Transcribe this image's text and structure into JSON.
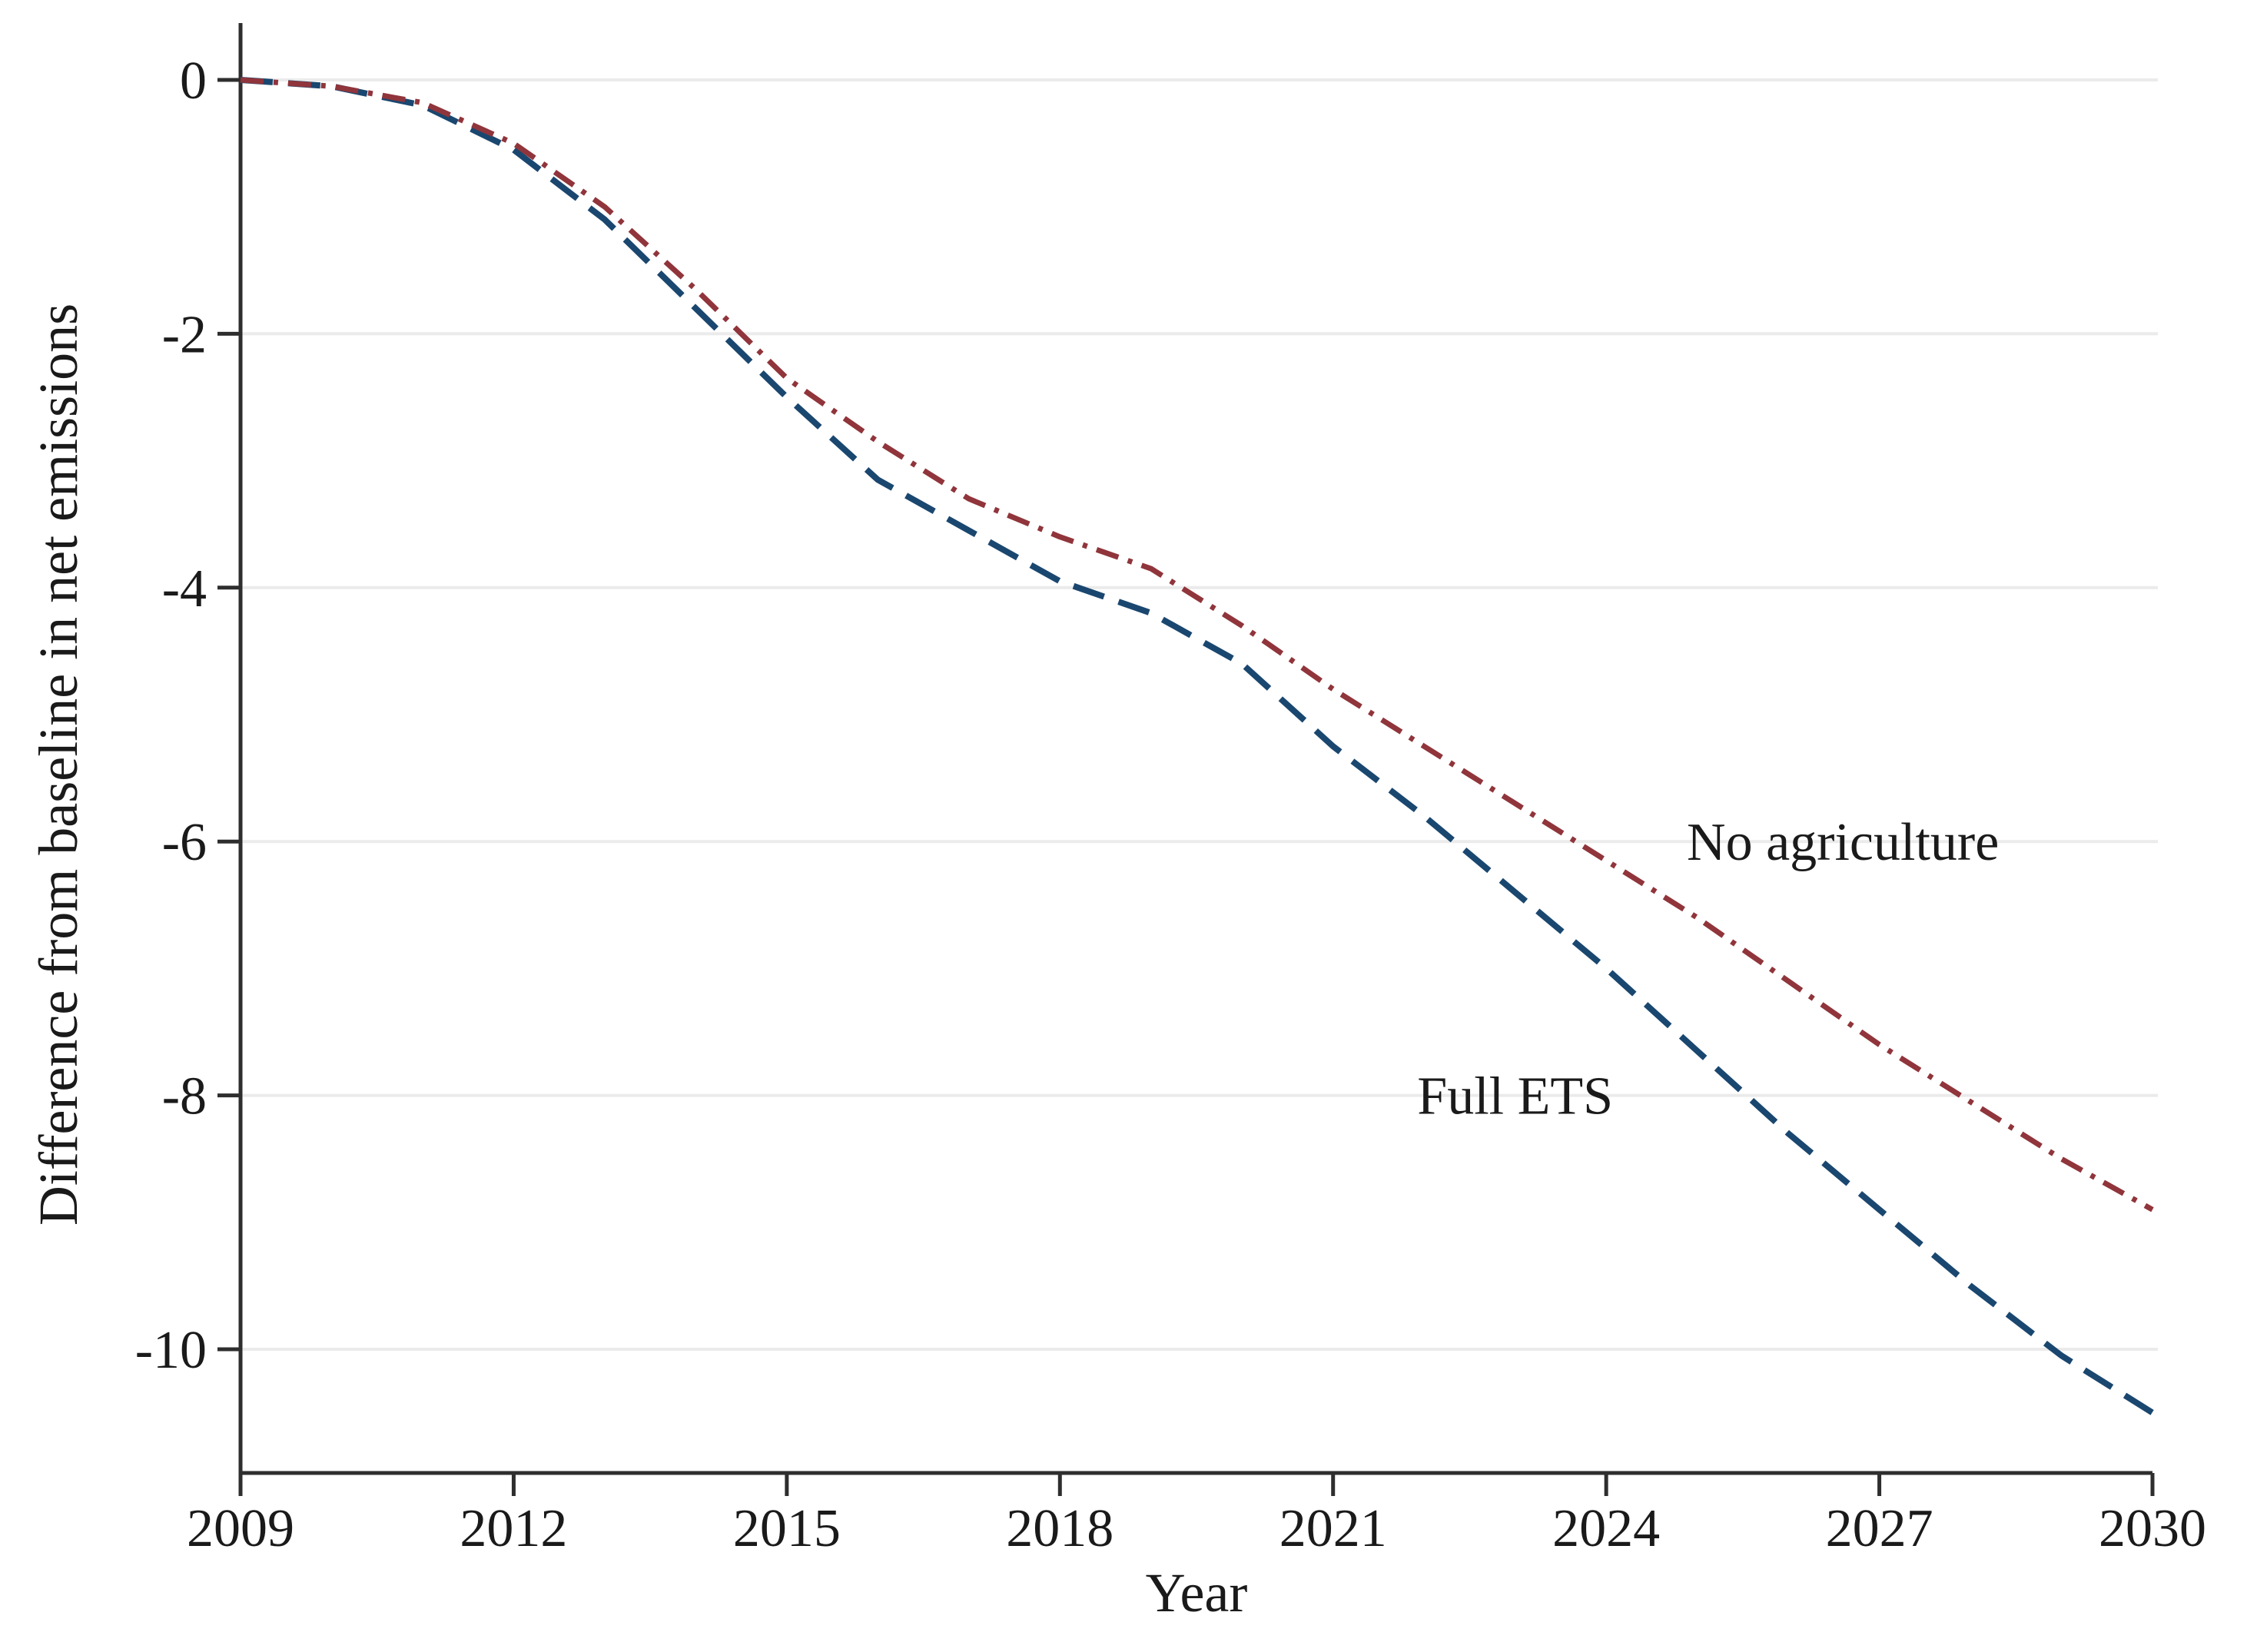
{
  "figure": {
    "background": "#ffffff",
    "axis_color": "#2e2e2e",
    "grid_color": "#ebebeb",
    "text_color": "#1a1a1a"
  },
  "chart_data": {
    "type": "line",
    "title": "",
    "xlabel": "Year",
    "ylabel": "Difference from baseline in net emissions",
    "xlim": [
      2009,
      2030
    ],
    "ylim": [
      -11,
      0.45
    ],
    "x_ticks": [
      2009,
      2012,
      2015,
      2018,
      2021,
      2024,
      2027,
      2030
    ],
    "y_ticks": [
      0,
      -2,
      -4,
      -6,
      -8,
      -10
    ],
    "grid": "horizontal",
    "legend_position": "inline-labels",
    "x": [
      2009,
      2010,
      2011,
      2012,
      2013,
      2014,
      2015,
      2016,
      2017,
      2018,
      2019,
      2020,
      2021,
      2022,
      2023,
      2024,
      2025,
      2026,
      2027,
      2028,
      2029,
      2030
    ],
    "series": [
      {
        "name": "Full ETS",
        "color": "#1A476F",
        "dash": "42 20",
        "width": 8,
        "values": [
          0,
          -0.05,
          -0.2,
          -0.55,
          -1.1,
          -1.8,
          -2.5,
          -3.15,
          -3.55,
          -3.95,
          -4.2,
          -4.6,
          -5.25,
          -5.8,
          -6.4,
          -7.0,
          -7.65,
          -8.3,
          -8.9,
          -9.5,
          -10.05,
          -10.5
        ],
        "label": {
          "text": "Full ETS",
          "x": 2023.0,
          "y": -8.0
        }
      },
      {
        "name": "No agriculture",
        "color": "#90353B",
        "dash": "30 13 6 13",
        "width": 7,
        "values": [
          0,
          -0.05,
          -0.18,
          -0.5,
          -1.0,
          -1.65,
          -2.35,
          -2.85,
          -3.3,
          -3.6,
          -3.85,
          -4.3,
          -4.8,
          -5.25,
          -5.7,
          -6.15,
          -6.6,
          -7.1,
          -7.6,
          -8.05,
          -8.5,
          -8.9
        ],
        "label": {
          "text": "No agriculture",
          "x": 2026.6,
          "y": -6.0
        }
      }
    ]
  }
}
